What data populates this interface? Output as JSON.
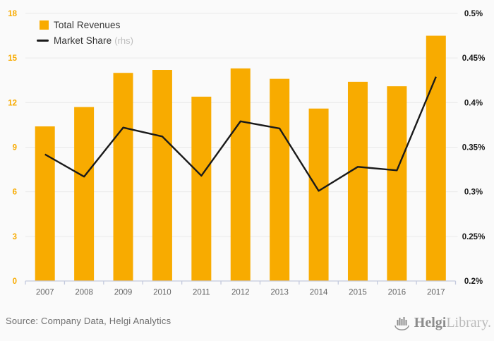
{
  "chart_data": {
    "type": "bar",
    "title": "",
    "categories": [
      "2007",
      "2008",
      "2009",
      "2010",
      "2011",
      "2012",
      "2013",
      "2014",
      "2015",
      "2016",
      "2017"
    ],
    "series": [
      {
        "name": "Total Revenues",
        "type": "bar",
        "axis": "left",
        "color": "#F8AB00",
        "values": [
          10.4,
          11.7,
          14.0,
          14.2,
          12.4,
          14.3,
          13.6,
          11.6,
          13.4,
          13.1,
          16.5
        ]
      },
      {
        "name": "Market Share",
        "type": "line",
        "axis": "right",
        "unit": "%",
        "color": "#1A1A1A",
        "values": [
          0.342,
          0.317,
          0.372,
          0.362,
          0.318,
          0.379,
          0.371,
          0.301,
          0.328,
          0.324,
          0.429
        ]
      }
    ],
    "left_axis": {
      "min": 0,
      "max": 18,
      "step": 3,
      "tick_labels": [
        "0",
        "3",
        "6",
        "9",
        "12",
        "15",
        "18"
      ],
      "label_color": "#F8AB00"
    },
    "right_axis": {
      "min": 0.2,
      "max": 0.5,
      "step": 0.05,
      "tick_labels": [
        "0.2%",
        "0.25%",
        "0.3%",
        "0.35%",
        "0.4%",
        "0.45%",
        "0.5%"
      ],
      "label_color": "#1A1A1A"
    },
    "grid": true,
    "legend_position": "top-left"
  },
  "legend": {
    "rhs_suffix": "(rhs)"
  },
  "footer": {
    "source": "Source: Company Data, Helgi Analytics",
    "logo_bold": "Helgi",
    "logo_light": "Library."
  },
  "colors": {
    "background": "#FAFAFA",
    "bar": "#F8AB00",
    "line": "#1A1A1A",
    "grid": "#E9E9E9",
    "axis_line": "#C4CADE",
    "year_labels": "#666666",
    "legend_text": "#333333",
    "rhs_text": "#BDBDBD",
    "source_text": "#6E6E6E",
    "logo_gray": "#8C8C8C",
    "logo_light_gray": "#BBBBBB"
  }
}
